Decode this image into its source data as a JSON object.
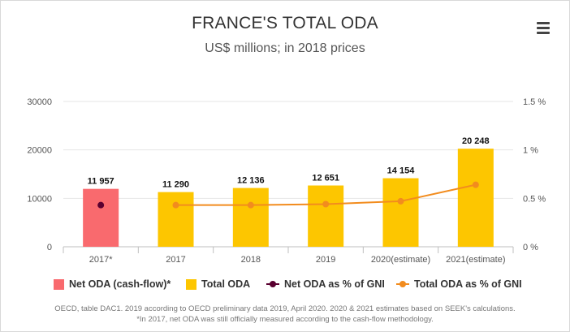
{
  "title": "FRANCE'S TOTAL ODA",
  "subtitle": "US$ millions; in 2018 prices",
  "menu": {
    "icon": "hamburger-menu-icon"
  },
  "legend": [
    {
      "label": "Net ODA (cash-flow)*",
      "kind": "bar",
      "color": "#f96a6e"
    },
    {
      "label": "Total ODA",
      "kind": "bar",
      "color": "#fdc600"
    },
    {
      "label": "Net ODA as % of GNI",
      "kind": "line",
      "color": "#5a0030"
    },
    {
      "label": "Total ODA as % of GNI",
      "kind": "line",
      "color": "#f28c1e"
    }
  ],
  "footnotes": [
    "OECD, table DAC1. 2019 according to OECD preliminary data 2019, April 2020. 2020 & 2021 estimates based on SEEK's calculations.",
    "*In 2017, net ODA was still officially measured according to the cash-flow methodology."
  ],
  "chart_data": {
    "type": "bar",
    "title": "FRANCE'S TOTAL ODA",
    "subtitle": "US$ millions; in 2018 prices",
    "categories": [
      "2017*",
      "2017",
      "2018",
      "2019",
      "2020(estimate)",
      "2021(estimate)"
    ],
    "y_left": {
      "min": 0,
      "max": 30000,
      "ticks": [
        0,
        10000,
        20000,
        30000
      ],
      "tick_labels": [
        "0",
        "10000",
        "20000",
        "30000"
      ]
    },
    "y_right": {
      "min": 0,
      "max": 1.5,
      "ticks": [
        0,
        0.5,
        1,
        1.5
      ],
      "tick_labels": [
        "0 %",
        "0.5 %",
        "1 %",
        "1.5 %"
      ]
    },
    "grid": true,
    "legend_position": "bottom",
    "series": [
      {
        "name": "Net ODA (cash-flow)*",
        "kind": "bar",
        "axis": "left",
        "color": "#f96a6e",
        "values": [
          11957,
          null,
          null,
          null,
          null,
          null
        ],
        "labels": [
          "11 957",
          null,
          null,
          null,
          null,
          null
        ]
      },
      {
        "name": "Total ODA",
        "kind": "bar",
        "axis": "left",
        "color": "#fdc600",
        "values": [
          null,
          11290,
          12136,
          12651,
          14154,
          20248
        ],
        "labels": [
          null,
          "11 290",
          "12 136",
          "12 651",
          "14 154",
          "20 248"
        ]
      },
      {
        "name": "Net ODA as % of GNI",
        "kind": "line",
        "axis": "right",
        "color": "#5a0030",
        "values": [
          0.43,
          null,
          null,
          null,
          null,
          null
        ]
      },
      {
        "name": "Total ODA as % of GNI",
        "kind": "line",
        "axis": "right",
        "color": "#f28c1e",
        "values": [
          null,
          0.43,
          0.43,
          0.44,
          0.47,
          0.64
        ]
      }
    ]
  }
}
